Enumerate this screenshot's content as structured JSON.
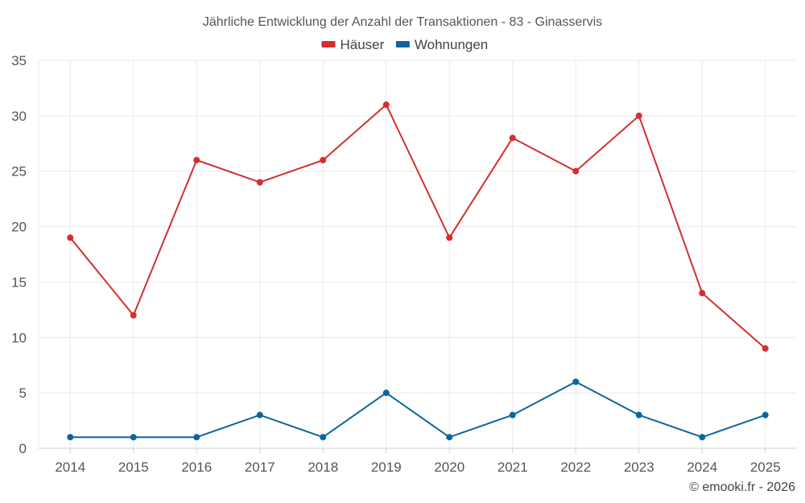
{
  "chart_data": {
    "type": "line",
    "title": "Jährliche Entwicklung der Anzahl der Transaktionen - 83 - Ginasservis",
    "xlabel": "",
    "ylabel": "",
    "categories": [
      "2014",
      "2015",
      "2016",
      "2017",
      "2018",
      "2019",
      "2020",
      "2021",
      "2022",
      "2023",
      "2024",
      "2025"
    ],
    "ylim": [
      0,
      35
    ],
    "yticks": [
      0,
      5,
      10,
      15,
      20,
      25,
      30,
      35
    ],
    "grid": true,
    "legend_position": "top-center",
    "series": [
      {
        "name": "Häuser",
        "color": "#d32f2f",
        "values": [
          19,
          12,
          26,
          24,
          26,
          31,
          19,
          28,
          25,
          30,
          14,
          9
        ]
      },
      {
        "name": "Wohnungen",
        "color": "#0d659d",
        "values": [
          1,
          1,
          1,
          3,
          1,
          5,
          1,
          3,
          6,
          3,
          1,
          3
        ]
      }
    ],
    "credit": "© emooki.fr - 2026"
  }
}
